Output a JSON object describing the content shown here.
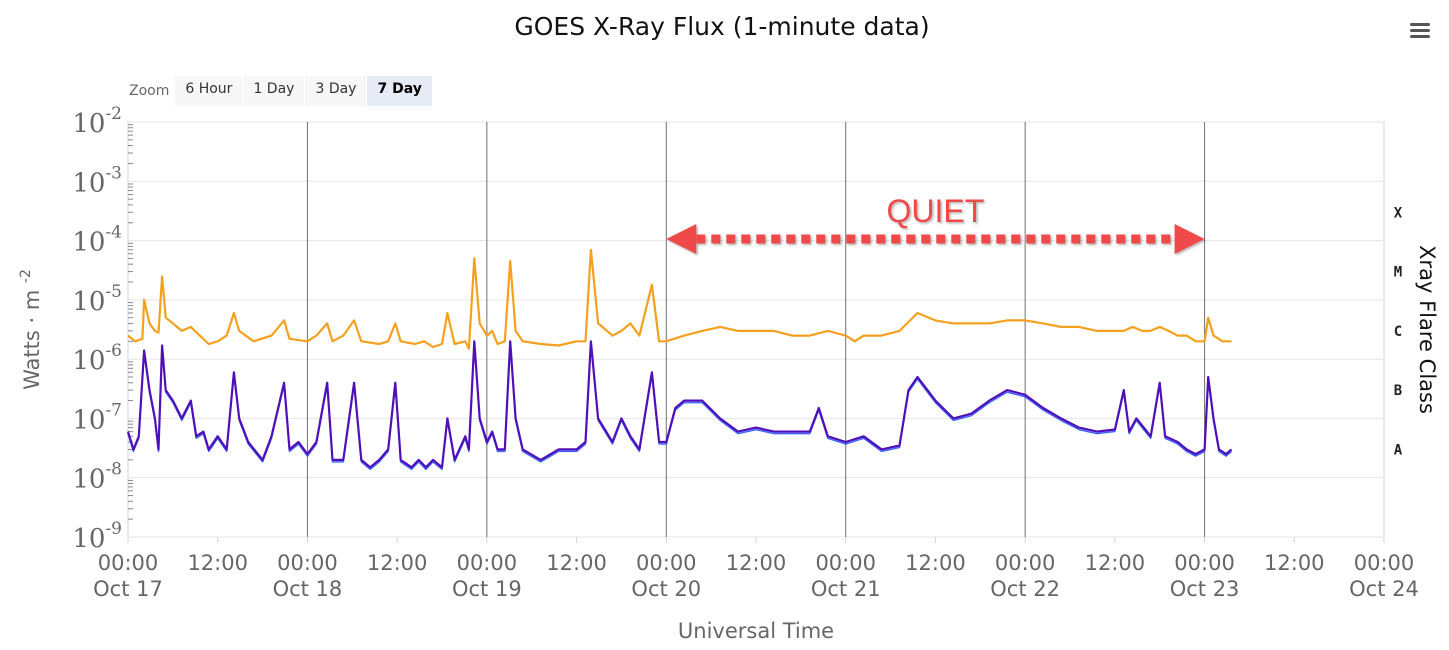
{
  "menu": {
    "icon": "hamburger-menu-icon"
  },
  "zoom": {
    "label": "Zoom",
    "buttons": [
      "6 Hour",
      "1 Day",
      "3 Day",
      "7 Day"
    ],
    "selected": "7 Day"
  },
  "annotation": {
    "text": "QUIET",
    "color": "#f04848",
    "from": "Oct 20 00:00",
    "to": "Oct 23 00:00"
  },
  "colors": {
    "long_channel": "#f5a01e",
    "short_channel": "#5010b8",
    "short_channel_alt": "#1040ff",
    "grid": "#e6e6e6",
    "day_line": "#707070"
  },
  "chart_data": {
    "type": "line",
    "title": "GOES X-Ray Flux (1-minute data)",
    "xlabel": "Universal Time",
    "ylabel": "Watts · m",
    "ylabel_superscript": "-2",
    "y2label": "Xray Flare Class",
    "yscale": "log",
    "ylim": [
      1e-09,
      0.01
    ],
    "y_ticks": [
      {
        "base": "10",
        "exp": "-2",
        "value": 0.01
      },
      {
        "base": "10",
        "exp": "-3",
        "value": 0.001
      },
      {
        "base": "10",
        "exp": "-4",
        "value": 0.0001
      },
      {
        "base": "10",
        "exp": "-5",
        "value": 1e-05
      },
      {
        "base": "10",
        "exp": "-6",
        "value": 1e-06
      },
      {
        "base": "10",
        "exp": "-7",
        "value": 1e-07
      },
      {
        "base": "10",
        "exp": "-8",
        "value": 1e-08
      },
      {
        "base": "10",
        "exp": "-9",
        "value": 1e-09
      }
    ],
    "flare_classes": [
      {
        "label": "X",
        "value": 0.0003
      },
      {
        "label": "M",
        "value": 3e-05
      },
      {
        "label": "C",
        "value": 3e-06
      },
      {
        "label": "B",
        "value": 3e-07
      },
      {
        "label": "A",
        "value": 3e-08
      }
    ],
    "x_unit": "days since Oct 17 00:00 UT",
    "xlim": [
      0,
      7
    ],
    "x_ticks": [
      {
        "x": 0,
        "time": "00:00",
        "date": "Oct 17"
      },
      {
        "x": 0.5,
        "time": "12:00",
        "date": ""
      },
      {
        "x": 1,
        "time": "00:00",
        "date": "Oct 18"
      },
      {
        "x": 1.5,
        "time": "12:00",
        "date": ""
      },
      {
        "x": 2,
        "time": "00:00",
        "date": "Oct 19"
      },
      {
        "x": 2.5,
        "time": "12:00",
        "date": ""
      },
      {
        "x": 3,
        "time": "00:00",
        "date": "Oct 20"
      },
      {
        "x": 3.5,
        "time": "12:00",
        "date": ""
      },
      {
        "x": 4,
        "time": "00:00",
        "date": "Oct 21"
      },
      {
        "x": 4.5,
        "time": "12:00",
        "date": ""
      },
      {
        "x": 5,
        "time": "00:00",
        "date": "Oct 22"
      },
      {
        "x": 5.5,
        "time": "12:00",
        "date": ""
      },
      {
        "x": 6,
        "time": "00:00",
        "date": "Oct 23"
      },
      {
        "x": 6.5,
        "time": "12:00",
        "date": ""
      },
      {
        "x": 7,
        "time": "00:00",
        "date": "Oct 24"
      }
    ],
    "day_lines": [
      1,
      2,
      3,
      4,
      5,
      6
    ],
    "series": [
      {
        "color": "#f5a01e",
        "points": [
          [
            0.0,
            2.5e-06
          ],
          [
            0.04,
            2e-06
          ],
          [
            0.08,
            2.2e-06
          ],
          [
            0.09,
            1e-05
          ],
          [
            0.12,
            4e-06
          ],
          [
            0.15,
            3e-06
          ],
          [
            0.17,
            2.8e-06
          ],
          [
            0.19,
            2.5e-05
          ],
          [
            0.21,
            5e-06
          ],
          [
            0.25,
            4e-06
          ],
          [
            0.3,
            3e-06
          ],
          [
            0.35,
            3.5e-06
          ],
          [
            0.4,
            2.5e-06
          ],
          [
            0.45,
            1.8e-06
          ],
          [
            0.5,
            2e-06
          ],
          [
            0.55,
            2.5e-06
          ],
          [
            0.59,
            6e-06
          ],
          [
            0.62,
            3e-06
          ],
          [
            0.7,
            2e-06
          ],
          [
            0.8,
            2.5e-06
          ],
          [
            0.87,
            4.5e-06
          ],
          [
            0.9,
            2.2e-06
          ],
          [
            1.0,
            2e-06
          ],
          [
            1.05,
            2.5e-06
          ],
          [
            1.11,
            4e-06
          ],
          [
            1.14,
            2e-06
          ],
          [
            1.2,
            2.5e-06
          ],
          [
            1.26,
            4.5e-06
          ],
          [
            1.3,
            2e-06
          ],
          [
            1.4,
            1.8e-06
          ],
          [
            1.45,
            2e-06
          ],
          [
            1.49,
            4e-06
          ],
          [
            1.52,
            2e-06
          ],
          [
            1.6,
            1.8e-06
          ],
          [
            1.65,
            2e-06
          ],
          [
            1.7,
            1.6e-06
          ],
          [
            1.75,
            1.8e-06
          ],
          [
            1.78,
            6e-06
          ],
          [
            1.82,
            1.8e-06
          ],
          [
            1.88,
            2e-06
          ],
          [
            1.9,
            1.5e-06
          ],
          [
            1.93,
            5e-05
          ],
          [
            1.96,
            4e-06
          ],
          [
            2.0,
            2.5e-06
          ],
          [
            2.03,
            3e-06
          ],
          [
            2.06,
            1.8e-06
          ],
          [
            2.1,
            2e-06
          ],
          [
            2.13,
            4.5e-05
          ],
          [
            2.16,
            3e-06
          ],
          [
            2.2,
            2e-06
          ],
          [
            2.3,
            1.8e-06
          ],
          [
            2.4,
            1.7e-06
          ],
          [
            2.5,
            2e-06
          ],
          [
            2.55,
            2e-06
          ],
          [
            2.58,
            7e-05
          ],
          [
            2.62,
            4e-06
          ],
          [
            2.7,
            2.5e-06
          ],
          [
            2.75,
            3e-06
          ],
          [
            2.8,
            4e-06
          ],
          [
            2.85,
            2.5e-06
          ],
          [
            2.92,
            1.8e-05
          ],
          [
            2.96,
            2e-06
          ],
          [
            3.0,
            2e-06
          ],
          [
            3.1,
            2.5e-06
          ],
          [
            3.2,
            3e-06
          ],
          [
            3.3,
            3.5e-06
          ],
          [
            3.4,
            3e-06
          ],
          [
            3.5,
            3e-06
          ],
          [
            3.6,
            3e-06
          ],
          [
            3.7,
            2.5e-06
          ],
          [
            3.8,
            2.5e-06
          ],
          [
            3.9,
            3e-06
          ],
          [
            4.0,
            2.5e-06
          ],
          [
            4.05,
            2e-06
          ],
          [
            4.1,
            2.5e-06
          ],
          [
            4.2,
            2.5e-06
          ],
          [
            4.3,
            3e-06
          ],
          [
            4.4,
            6e-06
          ],
          [
            4.5,
            4.5e-06
          ],
          [
            4.6,
            4e-06
          ],
          [
            4.7,
            4e-06
          ],
          [
            4.8,
            4e-06
          ],
          [
            4.9,
            4.5e-06
          ],
          [
            5.0,
            4.5e-06
          ],
          [
            5.1,
            4e-06
          ],
          [
            5.2,
            3.5e-06
          ],
          [
            5.3,
            3.5e-06
          ],
          [
            5.4,
            3e-06
          ],
          [
            5.5,
            3e-06
          ],
          [
            5.55,
            3e-06
          ],
          [
            5.6,
            3.5e-06
          ],
          [
            5.65,
            3e-06
          ],
          [
            5.7,
            3e-06
          ],
          [
            5.75,
            3.5e-06
          ],
          [
            5.8,
            3e-06
          ],
          [
            5.85,
            2.5e-06
          ],
          [
            5.9,
            2.5e-06
          ],
          [
            5.95,
            2e-06
          ],
          [
            6.0,
            2e-06
          ],
          [
            6.02,
            5e-06
          ],
          [
            6.05,
            2.5e-06
          ],
          [
            6.1,
            2e-06
          ],
          [
            6.15,
            2e-06
          ]
        ]
      },
      {
        "color": "#5010b8",
        "points": [
          [
            0.0,
            6e-08
          ],
          [
            0.03,
            3e-08
          ],
          [
            0.06,
            5e-08
          ],
          [
            0.09,
            1.4e-06
          ],
          [
            0.12,
            3e-07
          ],
          [
            0.15,
            1e-07
          ],
          [
            0.17,
            3e-08
          ],
          [
            0.19,
            1.7e-06
          ],
          [
            0.21,
            3e-07
          ],
          [
            0.25,
            2e-07
          ],
          [
            0.3,
            1e-07
          ],
          [
            0.35,
            2e-07
          ],
          [
            0.38,
            5e-08
          ],
          [
            0.42,
            6e-08
          ],
          [
            0.45,
            3e-08
          ],
          [
            0.5,
            5e-08
          ],
          [
            0.55,
            3e-08
          ],
          [
            0.59,
            6e-07
          ],
          [
            0.62,
            1e-07
          ],
          [
            0.67,
            4e-08
          ],
          [
            0.75,
            2e-08
          ],
          [
            0.8,
            5e-08
          ],
          [
            0.87,
            4e-07
          ],
          [
            0.9,
            3e-08
          ],
          [
            0.95,
            4e-08
          ],
          [
            1.0,
            2.5e-08
          ],
          [
            1.05,
            4e-08
          ],
          [
            1.11,
            4e-07
          ],
          [
            1.14,
            2e-08
          ],
          [
            1.2,
            2e-08
          ],
          [
            1.26,
            4e-07
          ],
          [
            1.3,
            2e-08
          ],
          [
            1.35,
            1.5e-08
          ],
          [
            1.4,
            2e-08
          ],
          [
            1.45,
            3e-08
          ],
          [
            1.49,
            4e-07
          ],
          [
            1.52,
            2e-08
          ],
          [
            1.58,
            1.5e-08
          ],
          [
            1.62,
            2e-08
          ],
          [
            1.66,
            1.5e-08
          ],
          [
            1.7,
            2e-08
          ],
          [
            1.75,
            1.5e-08
          ],
          [
            1.78,
            1e-07
          ],
          [
            1.82,
            2e-08
          ],
          [
            1.88,
            5e-08
          ],
          [
            1.9,
            3e-08
          ],
          [
            1.93,
            2e-06
          ],
          [
            1.96,
            1e-07
          ],
          [
            2.0,
            4e-08
          ],
          [
            2.03,
            6e-08
          ],
          [
            2.06,
            3e-08
          ],
          [
            2.1,
            3e-08
          ],
          [
            2.13,
            2e-06
          ],
          [
            2.16,
            1e-07
          ],
          [
            2.2,
            3e-08
          ],
          [
            2.3,
            2e-08
          ],
          [
            2.4,
            3e-08
          ],
          [
            2.5,
            3e-08
          ],
          [
            2.55,
            4e-08
          ],
          [
            2.58,
            2e-06
          ],
          [
            2.62,
            1e-07
          ],
          [
            2.7,
            4e-08
          ],
          [
            2.75,
            1e-07
          ],
          [
            2.8,
            5e-08
          ],
          [
            2.85,
            3e-08
          ],
          [
            2.92,
            6e-07
          ],
          [
            2.96,
            4e-08
          ],
          [
            3.0,
            4e-08
          ],
          [
            3.05,
            1.5e-07
          ],
          [
            3.1,
            2e-07
          ],
          [
            3.2,
            2e-07
          ],
          [
            3.3,
            1e-07
          ],
          [
            3.4,
            6e-08
          ],
          [
            3.5,
            7e-08
          ],
          [
            3.6,
            6e-08
          ],
          [
            3.7,
            6e-08
          ],
          [
            3.8,
            6e-08
          ],
          [
            3.85,
            1.5e-07
          ],
          [
            3.9,
            5e-08
          ],
          [
            4.0,
            4e-08
          ],
          [
            4.1,
            5e-08
          ],
          [
            4.2,
            3e-08
          ],
          [
            4.3,
            3.5e-08
          ],
          [
            4.35,
            3e-07
          ],
          [
            4.4,
            5e-07
          ],
          [
            4.5,
            2e-07
          ],
          [
            4.6,
            1e-07
          ],
          [
            4.7,
            1.2e-07
          ],
          [
            4.8,
            2e-07
          ],
          [
            4.9,
            3e-07
          ],
          [
            5.0,
            2.5e-07
          ],
          [
            5.1,
            1.5e-07
          ],
          [
            5.2,
            1e-07
          ],
          [
            5.3,
            7e-08
          ],
          [
            5.4,
            6e-08
          ],
          [
            5.5,
            6.5e-08
          ],
          [
            5.55,
            3e-07
          ],
          [
            5.58,
            6e-08
          ],
          [
            5.62,
            1e-07
          ],
          [
            5.7,
            5e-08
          ],
          [
            5.75,
            4e-07
          ],
          [
            5.78,
            5e-08
          ],
          [
            5.85,
            4e-08
          ],
          [
            5.9,
            3e-08
          ],
          [
            5.95,
            2.5e-08
          ],
          [
            6.0,
            3e-08
          ],
          [
            6.02,
            5e-07
          ],
          [
            6.05,
            1e-07
          ],
          [
            6.08,
            3e-08
          ],
          [
            6.12,
            2.5e-08
          ],
          [
            6.15,
            3e-08
          ]
        ]
      }
    ]
  }
}
